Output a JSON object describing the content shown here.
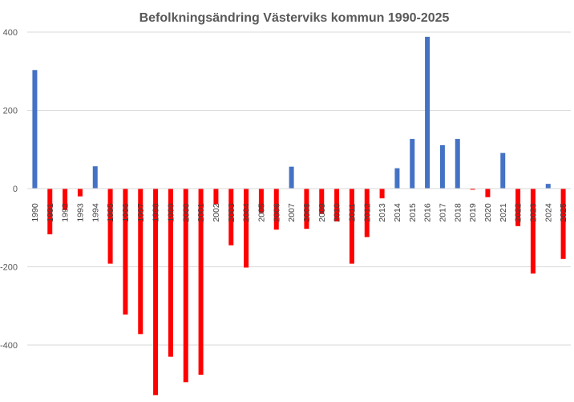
{
  "chart_data": {
    "type": "bar",
    "title": "Befolkningsändring Västerviks kommun 1990-2025",
    "xlabel": "",
    "ylabel": "",
    "ylim": [
      -540,
      400
    ],
    "yticks": [
      400,
      200,
      0,
      -200,
      -400
    ],
    "grid": true,
    "legend": "none",
    "colors": {
      "positive": "#4472c4",
      "negative": "#ff0000"
    },
    "categories": [
      "1990",
      "1991",
      "1992",
      "1993",
      "1994",
      "1995",
      "1996",
      "1997",
      "1998",
      "1999",
      "2000",
      "2001",
      "2002",
      "2003",
      "2004",
      "2005",
      "2006",
      "2007",
      "2008",
      "2009",
      "2010",
      "2011",
      "2012",
      "2013",
      "2014",
      "2015",
      "2016",
      "2017",
      "2018",
      "2019",
      "2020",
      "2021",
      "2022",
      "2023",
      "2024",
      "2025"
    ],
    "values": [
      303,
      -117,
      -55,
      -20,
      57,
      -192,
      -322,
      -372,
      -528,
      -430,
      -495,
      -476,
      -40,
      -145,
      -202,
      -62,
      -105,
      56,
      -103,
      -65,
      -84,
      -192,
      -124,
      -25,
      52,
      127,
      388,
      111,
      127,
      -3,
      -22,
      91,
      -96,
      -217,
      12,
      -180
    ]
  }
}
